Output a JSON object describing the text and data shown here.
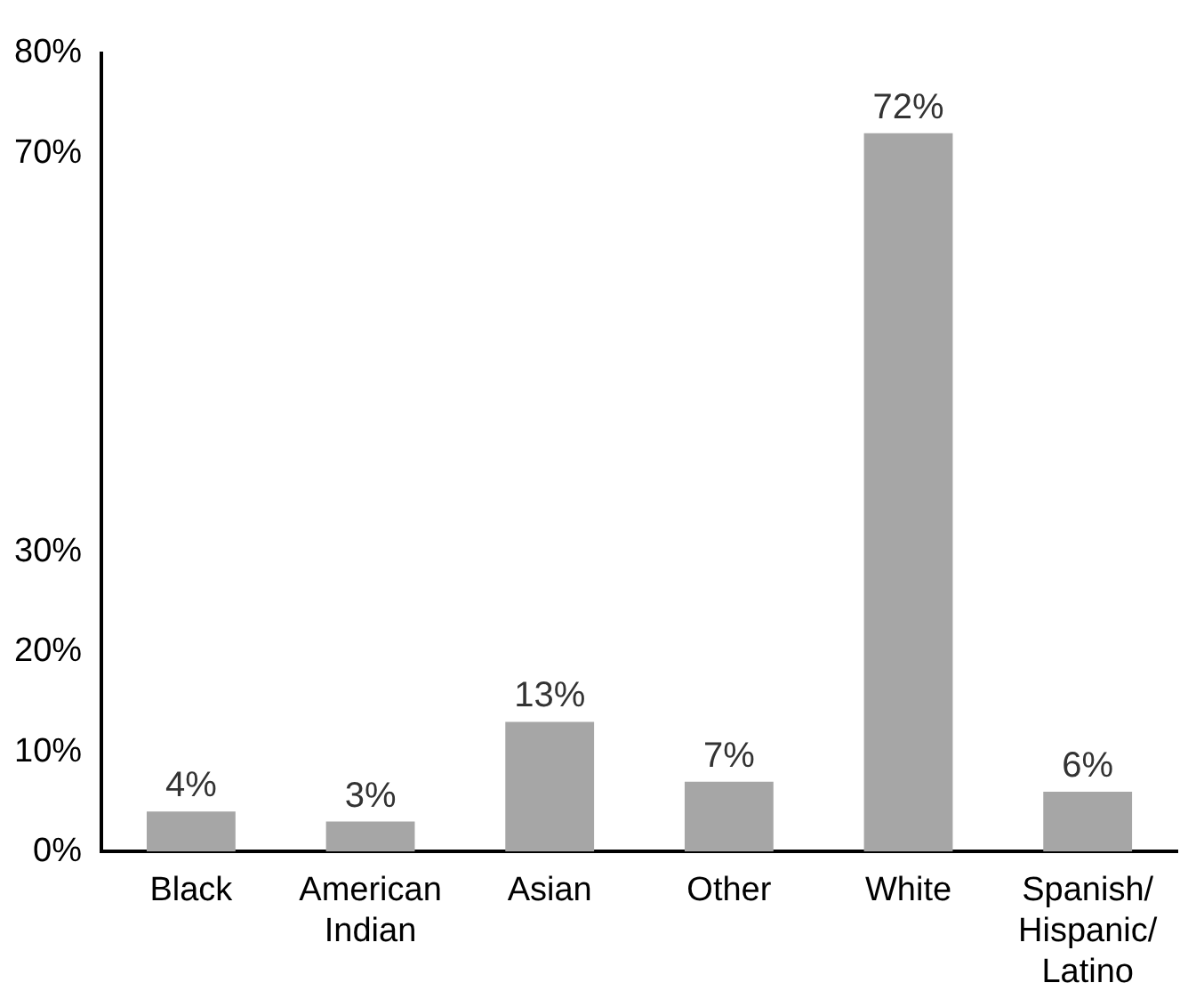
{
  "chart_data": {
    "type": "bar",
    "categories": [
      "Black",
      "American Indian",
      "Asian",
      "Other",
      "White",
      "Spanish/Hispanic/Latino"
    ],
    "values": [
      4,
      3,
      13,
      7,
      72,
      6
    ],
    "value_labels": [
      "4%",
      "3%",
      "13%",
      "7%",
      "72%",
      "6%"
    ],
    "color": "#a6a6a6",
    "ylim": [
      0,
      80
    ],
    "yticks": [
      {
        "value": 0,
        "label": "0%"
      },
      {
        "value": 10,
        "label": "10%"
      },
      {
        "value": 20,
        "label": "20%"
      },
      {
        "value": 30,
        "label": "30%"
      },
      {
        "value": 70,
        "label": "70%"
      },
      {
        "value": 80,
        "label": "80%"
      }
    ],
    "grid": false,
    "legend": false
  }
}
